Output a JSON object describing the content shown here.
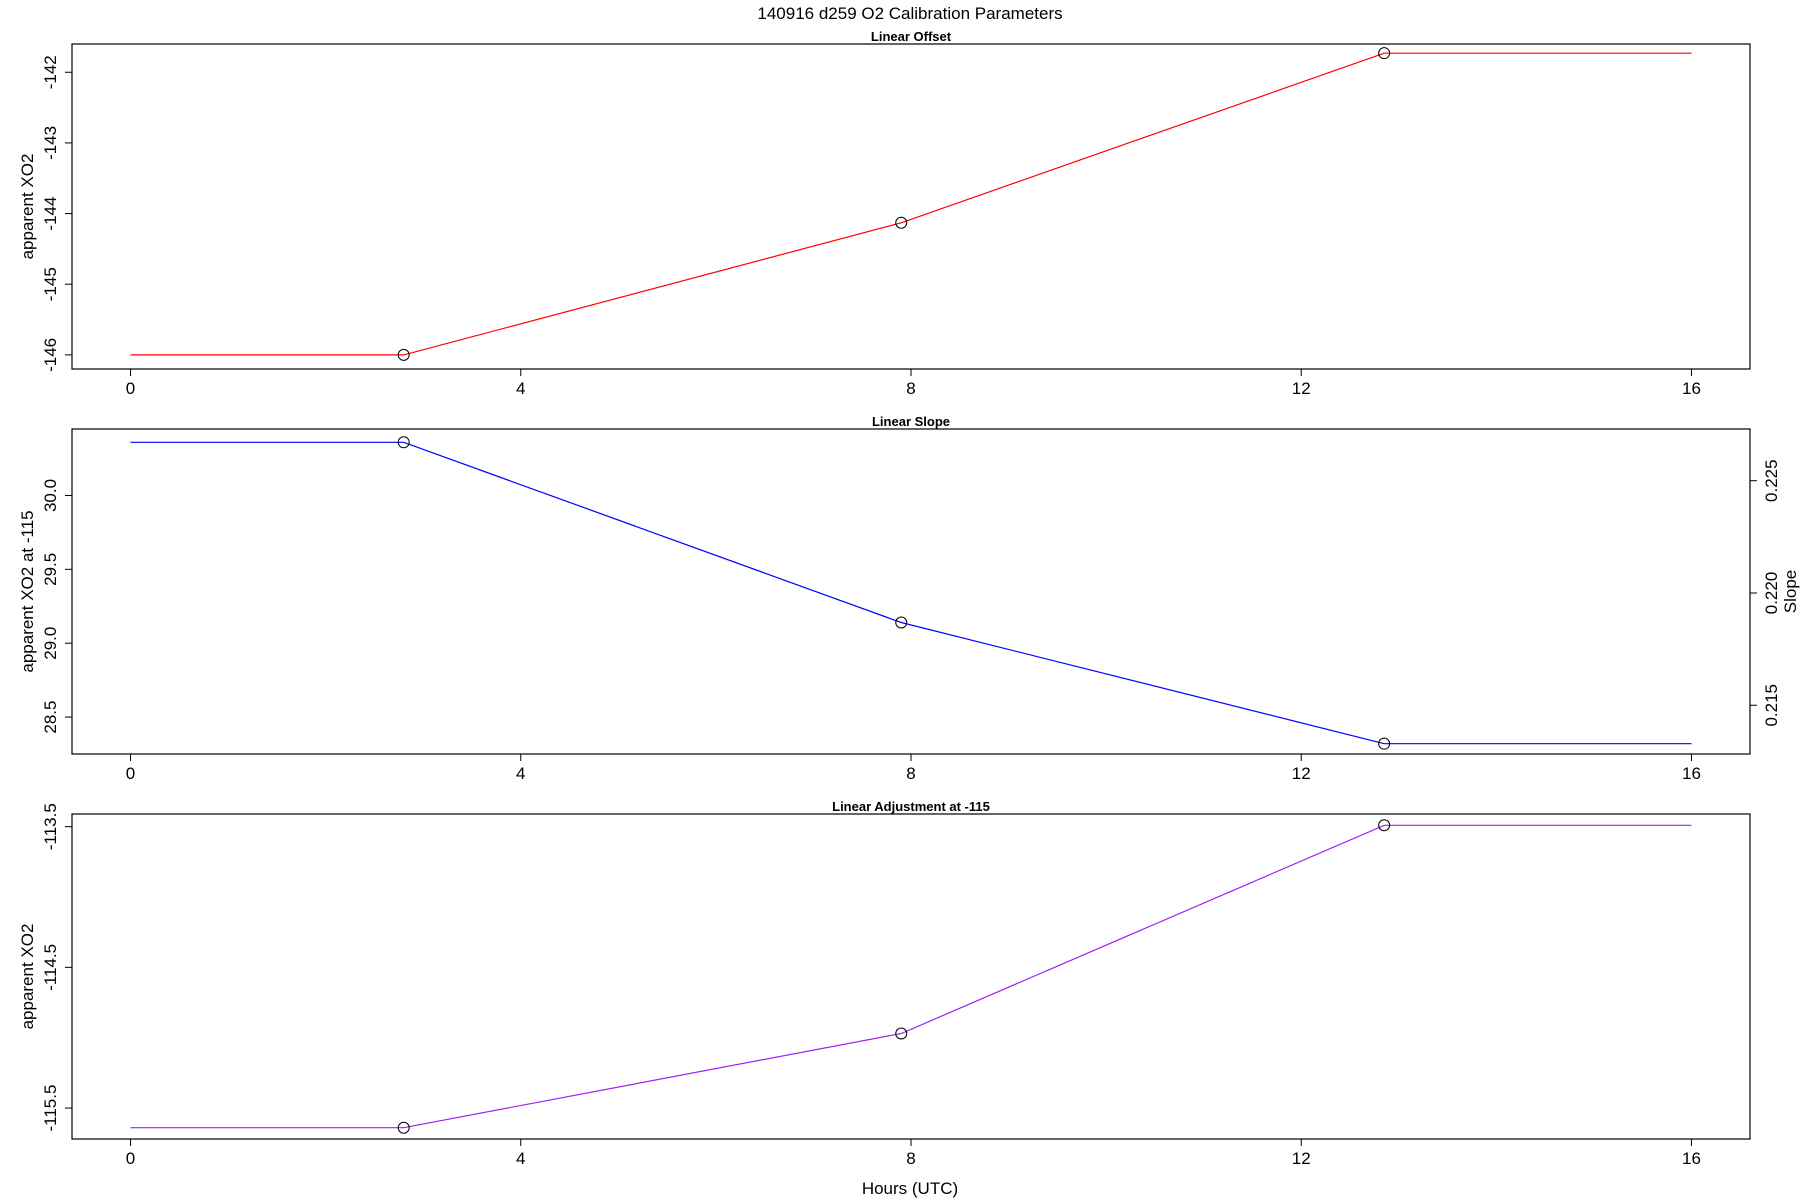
{
  "figure": {
    "title": "140916   d259   O2 Calibration Parameters",
    "xlabel": "Hours (UTC)"
  },
  "chart_data": [
    {
      "type": "line",
      "title": "Linear Offset",
      "xlabel": "",
      "ylabel": "apparent XO2",
      "xlim": [
        -0.6,
        16.6
      ],
      "ylim": [
        -146.2,
        -141.6
      ],
      "xticks": [
        0,
        4,
        8,
        12,
        16
      ],
      "yticks": [
        -146,
        -145,
        -144,
        -143,
        -142
      ],
      "grid": false,
      "series": [
        {
          "color": "#ff0000",
          "x": [
            0,
            2.8,
            7.9,
            12.85,
            16
          ],
          "y": [
            -146.0,
            -146.0,
            -144.13,
            -141.73,
            -141.73
          ]
        }
      ],
      "markers": {
        "x": [
          2.8,
          7.9,
          12.85
        ],
        "y": [
          -146.0,
          -144.13,
          -141.73
        ]
      }
    },
    {
      "type": "line",
      "title": "Linear Slope",
      "xlabel": "",
      "ylabel": "apparent XO2 at -115",
      "ylabel_right": "Slope",
      "xlim": [
        -0.6,
        16.6
      ],
      "ylim": [
        28.25,
        30.45
      ],
      "xticks": [
        0,
        4,
        8,
        12,
        16
      ],
      "yticks": [
        28.5,
        29.0,
        29.5,
        30.0
      ],
      "yticks_right": [
        {
          "label": "0.215",
          "at": 28.58
        },
        {
          "label": "0.220",
          "at": 29.34
        },
        {
          "label": "0.225",
          "at": 30.1
        }
      ],
      "grid": false,
      "series": [
        {
          "color": "#0000ff",
          "x": [
            0,
            2.8,
            7.9,
            12.85,
            16
          ],
          "y": [
            30.36,
            30.36,
            29.14,
            28.32,
            28.32
          ]
        }
      ],
      "markers": {
        "x": [
          2.8,
          7.9,
          12.85
        ],
        "y": [
          30.36,
          29.14,
          28.32
        ]
      }
    },
    {
      "type": "line",
      "title": "Linear Adjustment at -115",
      "xlabel": "Hours (UTC)",
      "ylabel": "apparent XO2",
      "xlim": [
        -0.6,
        16.6
      ],
      "ylim": [
        -115.72,
        -113.41
      ],
      "xticks": [
        0,
        4,
        8,
        12,
        16
      ],
      "yticks": [
        -115.5,
        -114.5,
        -113.5
      ],
      "grid": false,
      "series": [
        {
          "color": "#a020f0",
          "x": [
            0,
            2.8,
            7.9,
            12.85,
            16
          ],
          "y": [
            -115.64,
            -115.64,
            -114.97,
            -113.49,
            -113.49
          ]
        }
      ],
      "markers": {
        "x": [
          2.8,
          7.9,
          12.85
        ],
        "y": [
          -115.64,
          -114.97,
          -113.49
        ]
      }
    }
  ]
}
